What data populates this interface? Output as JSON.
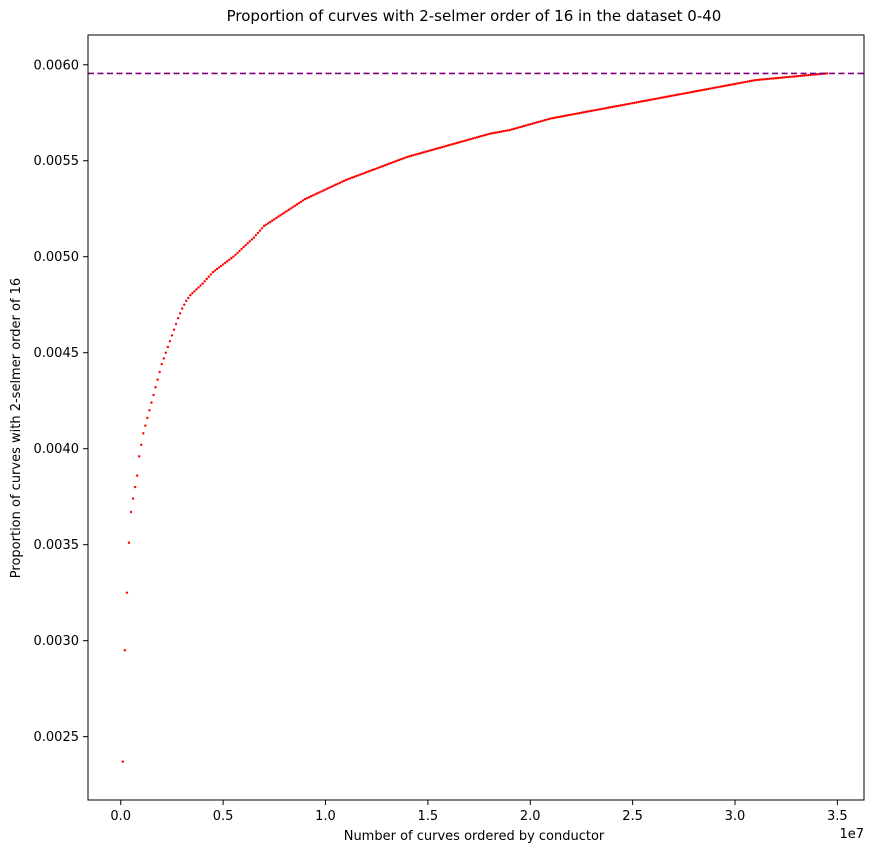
{
  "chart_data": {
    "type": "scatter",
    "title": "Proportion of curves with 2-selmer order of 16 in the dataset 0-40",
    "xlabel": "Number of curves ordered by conductor",
    "ylabel": "Proportion of curves with 2-selmer order of 16",
    "x_offset_label": "1e7",
    "x_scale": 10000000,
    "xlim": [
      -1600000,
      36300000
    ],
    "ylim": [
      0.00217,
      0.006155
    ],
    "x_ticks": [
      0,
      5000000,
      10000000,
      15000000,
      20000000,
      25000000,
      30000000,
      35000000
    ],
    "x_tick_labels": [
      "0.0",
      "0.5",
      "1.0",
      "1.5",
      "2.0",
      "2.5",
      "3.0",
      "3.5"
    ],
    "y_ticks": [
      0.0025,
      0.003,
      0.0035,
      0.004,
      0.0045,
      0.005,
      0.0055,
      0.006
    ],
    "y_tick_labels": [
      "0.0025",
      "0.0030",
      "0.0035",
      "0.0040",
      "0.0045",
      "0.0050",
      "0.0055",
      "0.0060"
    ],
    "grid": false,
    "reference_line": {
      "y": 0.005955,
      "style": "dashed",
      "color": "#800080"
    },
    "series": [
      {
        "color": "#ff0000",
        "marker_size": 1.2,
        "x_start": 100000,
        "x_step": 100000,
        "x_end": 34500000,
        "curve_knots": [
          [
            100000,
            0.00237
          ],
          [
            200000,
            0.00295
          ],
          [
            300000,
            0.00325
          ],
          [
            400000,
            0.00351
          ],
          [
            500000,
            0.00367
          ],
          [
            600000,
            0.00374
          ],
          [
            700000,
            0.0038
          ],
          [
            800000,
            0.00386
          ],
          [
            900000,
            0.00396
          ],
          [
            1000000,
            0.00402
          ],
          [
            1100000,
            0.00408
          ],
          [
            1200000,
            0.00412
          ],
          [
            1400000,
            0.0042
          ],
          [
            1600000,
            0.00428
          ],
          [
            1800000,
            0.00436
          ],
          [
            2000000,
            0.00444
          ],
          [
            2200000,
            0.0045
          ],
          [
            2400000,
            0.00456
          ],
          [
            2600000,
            0.00462
          ],
          [
            2800000,
            0.00468
          ],
          [
            3000000,
            0.00473
          ],
          [
            3200000,
            0.00477
          ],
          [
            3400000,
            0.0048
          ],
          [
            3600000,
            0.00482
          ],
          [
            4000000,
            0.00486
          ],
          [
            4500000,
            0.00492
          ],
          [
            5000000,
            0.00496
          ],
          [
            5500000,
            0.005
          ],
          [
            6000000,
            0.00505
          ],
          [
            6500000,
            0.0051
          ],
          [
            7000000,
            0.00516
          ],
          [
            8000000,
            0.00523
          ],
          [
            9000000,
            0.0053
          ],
          [
            10000000,
            0.00535
          ],
          [
            11000000,
            0.0054
          ],
          [
            12000000,
            0.00544
          ],
          [
            13000000,
            0.00548
          ],
          [
            14000000,
            0.00552
          ],
          [
            15000000,
            0.00555
          ],
          [
            16000000,
            0.00558
          ],
          [
            17000000,
            0.00561
          ],
          [
            18000000,
            0.00564
          ],
          [
            19000000,
            0.00566
          ],
          [
            20000000,
            0.00569
          ],
          [
            21000000,
            0.00572
          ],
          [
            22000000,
            0.00574
          ],
          [
            23000000,
            0.00576
          ],
          [
            24000000,
            0.00578
          ],
          [
            25000000,
            0.0058
          ],
          [
            26000000,
            0.00582
          ],
          [
            27000000,
            0.00584
          ],
          [
            28000000,
            0.00586
          ],
          [
            29000000,
            0.00588
          ],
          [
            30000000,
            0.0059
          ],
          [
            31000000,
            0.00592
          ],
          [
            32000000,
            0.00593
          ],
          [
            33000000,
            0.00594
          ],
          [
            34000000,
            0.00595
          ],
          [
            34500000,
            0.005955
          ]
        ]
      }
    ]
  }
}
